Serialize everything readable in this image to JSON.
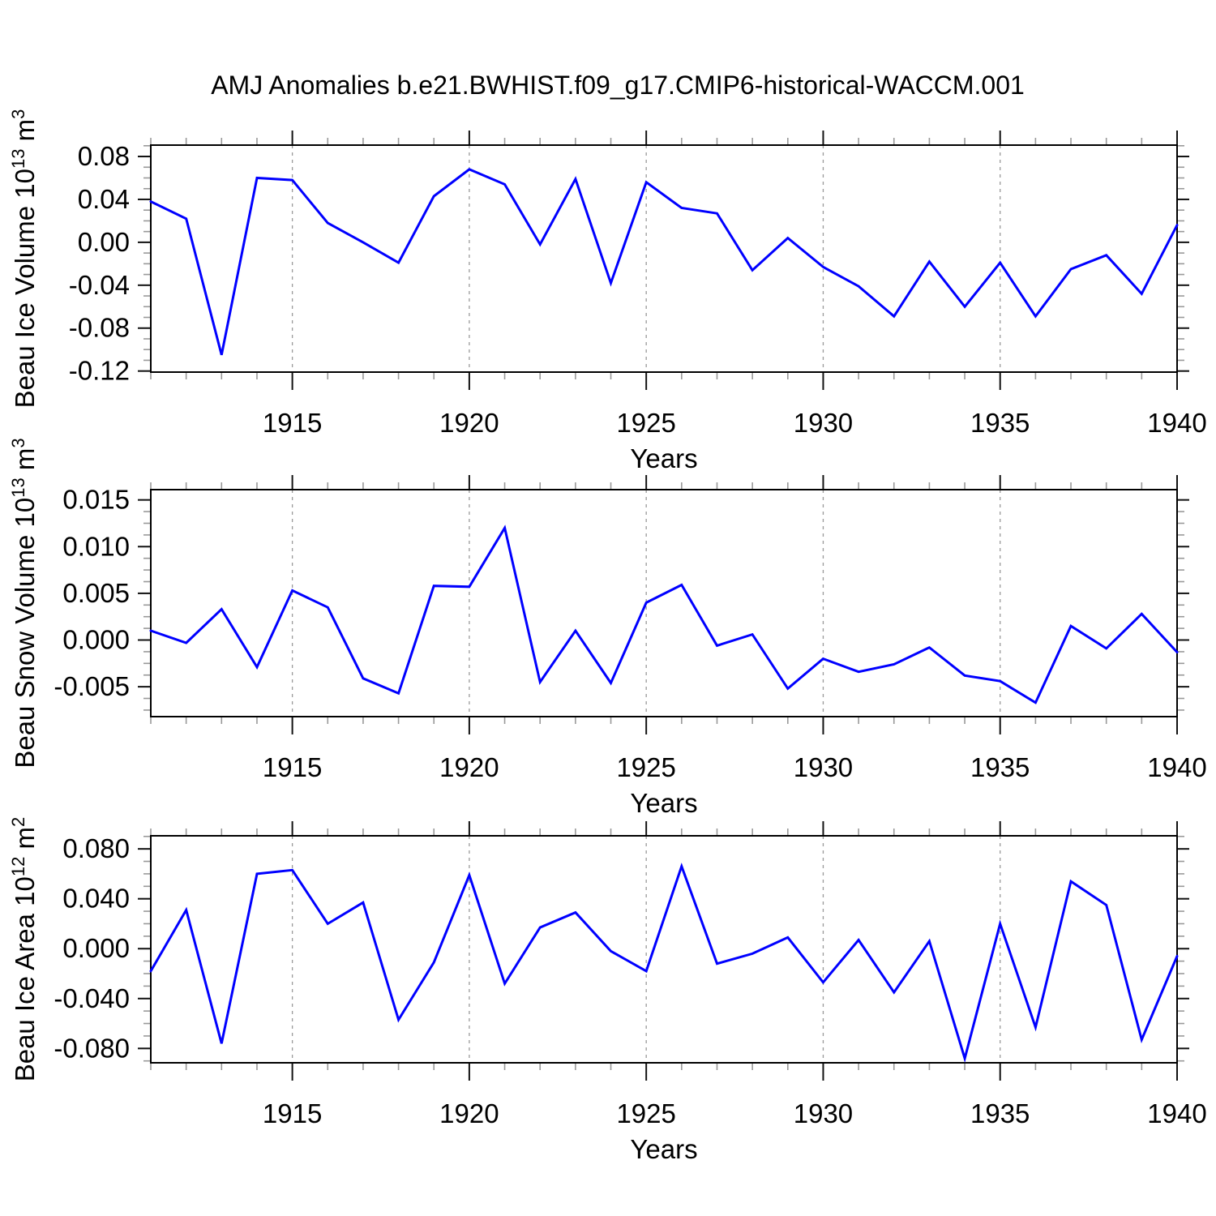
{
  "title": "AMJ Anomalies b.e21.BWHIST.f09_g17.CMIP6-historical-WACCM.001",
  "colors": {
    "line": "#0000ff",
    "grid": "#999999",
    "box": "#000000",
    "tick_major": "#111111",
    "tick_minor": "#999999",
    "text": "#000000",
    "background": "#ffffff"
  },
  "x_axis": {
    "label": "Years",
    "start": 1911,
    "end": 1940,
    "years": [
      1911,
      1912,
      1913,
      1914,
      1915,
      1916,
      1917,
      1918,
      1919,
      1920,
      1921,
      1922,
      1923,
      1924,
      1925,
      1926,
      1927,
      1928,
      1929,
      1930,
      1931,
      1932,
      1933,
      1934,
      1935,
      1936,
      1937,
      1938,
      1939,
      1940
    ],
    "tick_years": [
      1915,
      1920,
      1925,
      1930,
      1935,
      1940
    ],
    "tick_labels": [
      "1915",
      "1920",
      "1925",
      "1930",
      "1935",
      "1940"
    ],
    "grid_years": [
      1915,
      1920,
      1925,
      1930,
      1935
    ],
    "minor_step": 1
  },
  "chart_data": [
    {
      "type": "line",
      "name": "beau-ice-volume",
      "ylabel": "Beau Ice Volume 10^13 m^3",
      "ylabel_segments": [
        {
          "t": "Beau Ice Volume 10"
        },
        {
          "t": "13",
          "sup": true
        },
        {
          "t": " m"
        },
        {
          "t": "3",
          "sup": true
        }
      ],
      "xlabel": "Years",
      "ylim": [
        -0.121,
        0.0906
      ],
      "ytick_values": [
        0.08,
        0.04,
        0.0,
        -0.04,
        -0.08,
        -0.12
      ],
      "ytick_labels": [
        "0.08",
        "0.04",
        "0.00",
        "-0.04",
        "-0.08",
        "-0.12"
      ],
      "yminor_step": 0.01,
      "grid": "x-dashed",
      "legend": "none",
      "values": [
        0.038,
        0.022,
        -0.105,
        0.06,
        0.058,
        0.018,
        0.0,
        -0.019,
        0.043,
        0.068,
        0.054,
        -0.002,
        0.059,
        -0.038,
        0.056,
        0.032,
        0.027,
        -0.026,
        0.004,
        -0.023,
        -0.041,
        -0.069,
        -0.018,
        -0.06,
        -0.019,
        -0.069,
        -0.025,
        -0.012,
        -0.048,
        0.016
      ]
    },
    {
      "type": "line",
      "name": "beau-snow-volume",
      "ylabel": "Beau Snow Volume 10^13 m^3",
      "ylabel_segments": [
        {
          "t": "Beau Snow Volume 10"
        },
        {
          "t": "13",
          "sup": true
        },
        {
          "t": " m"
        },
        {
          "t": "3",
          "sup": true
        }
      ],
      "xlabel": "Years",
      "ylim": [
        -0.0082,
        0.0161
      ],
      "ytick_values": [
        0.015,
        0.01,
        0.005,
        0.0,
        -0.005
      ],
      "ytick_labels": [
        "0.015",
        "0.010",
        "0.005",
        "0.000",
        "-0.005"
      ],
      "yminor_step": 0.00125,
      "grid": "x-dashed",
      "legend": "none",
      "values": [
        0.001,
        -0.0003,
        0.0033,
        -0.0029,
        0.0053,
        0.0035,
        -0.0041,
        -0.0057,
        0.0058,
        0.0057,
        0.012,
        -0.0045,
        0.001,
        -0.0046,
        0.004,
        0.0059,
        -0.0006,
        0.0006,
        -0.0052,
        -0.002,
        -0.0034,
        -0.0026,
        -0.0008,
        -0.0038,
        -0.0044,
        -0.0067,
        0.0015,
        -0.0009,
        0.0028,
        -0.0013
      ]
    },
    {
      "type": "line",
      "name": "beau-ice-area",
      "ylabel": "Beau Ice Area 10^12 m^2",
      "ylabel_segments": [
        {
          "t": "Beau Ice Area 10"
        },
        {
          "t": "12",
          "sup": true
        },
        {
          "t": " m"
        },
        {
          "t": "2",
          "sup": true
        }
      ],
      "xlabel": "Years",
      "ylim": [
        -0.0915,
        0.0905
      ],
      "ytick_values": [
        0.08,
        0.04,
        0.0,
        -0.04,
        -0.08
      ],
      "ytick_labels": [
        "0.080",
        "0.040",
        "0.000",
        "-0.040",
        "-0.080"
      ],
      "yminor_step": 0.01,
      "grid": "x-dashed",
      "legend": "none",
      "values": [
        -0.018,
        0.031,
        -0.076,
        0.06,
        0.063,
        0.02,
        0.037,
        -0.057,
        -0.011,
        0.059,
        -0.028,
        0.017,
        0.029,
        -0.002,
        -0.018,
        0.066,
        -0.012,
        -0.004,
        0.009,
        -0.027,
        0.007,
        -0.035,
        0.006,
        -0.088,
        0.02,
        -0.063,
        0.054,
        0.035,
        -0.073,
        -0.006
      ]
    }
  ]
}
